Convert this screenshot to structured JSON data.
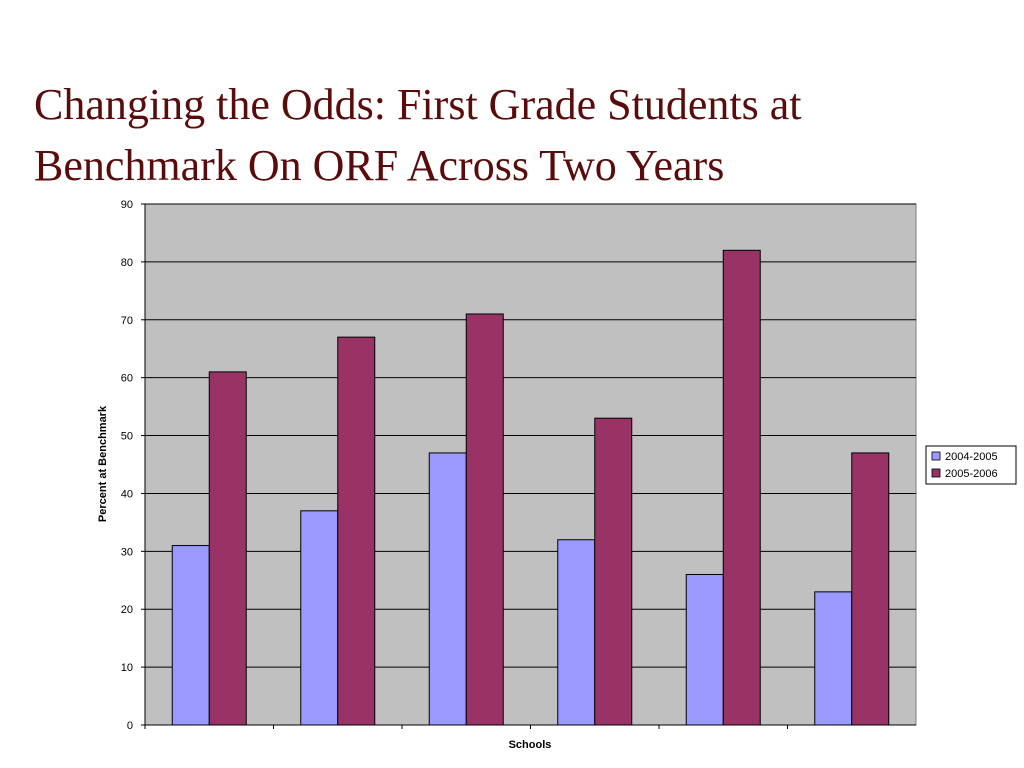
{
  "slide": {
    "title": "Changing the Odds: First Grade Students at Benchmark On ORF Across Two Years"
  },
  "chart_data": {
    "type": "bar",
    "title": "",
    "xlabel": "Schools",
    "ylabel": "Percent at Benchmark",
    "ylim": [
      0,
      90
    ],
    "ytick_step": 10,
    "grid": true,
    "legend_position": "right",
    "plot_background": "#c0c0c0",
    "categories": [
      "",
      "",
      "",
      "",
      "",
      ""
    ],
    "series": [
      {
        "name": "2004-2005",
        "color": "#9999ff",
        "values": [
          31,
          37,
          47,
          32,
          26,
          23
        ]
      },
      {
        "name": "2005-2006",
        "color": "#993366",
        "values": [
          61,
          67,
          71,
          53,
          82,
          47
        ]
      }
    ]
  }
}
